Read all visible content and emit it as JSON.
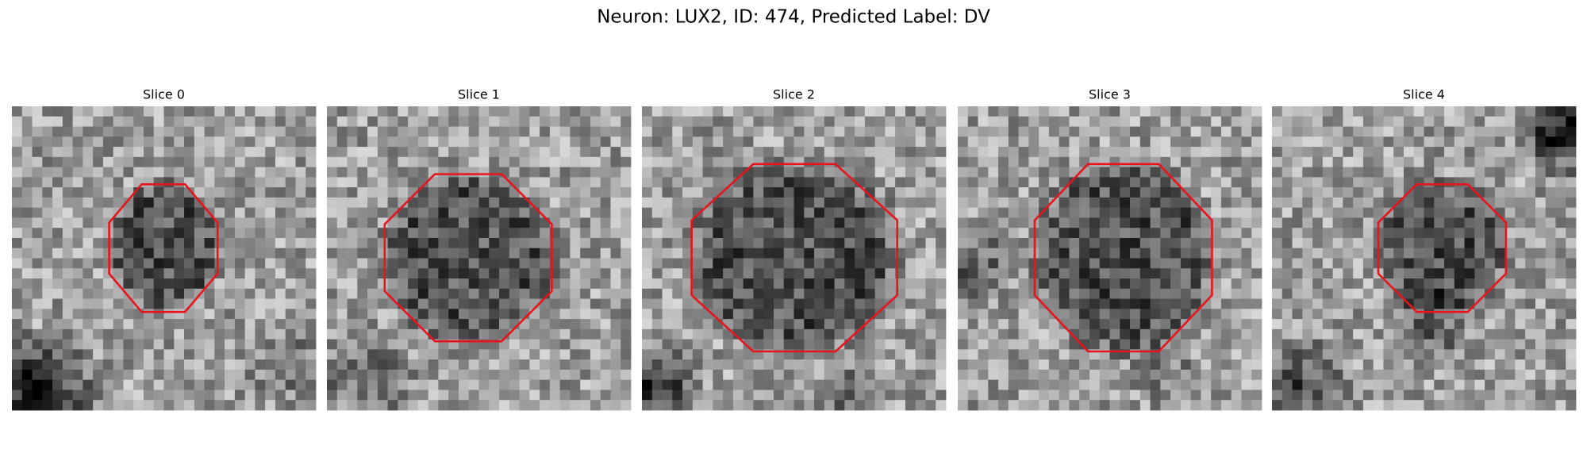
{
  "figure": {
    "title": "Neuron: LUX2, ID: 474, Predicted Label: DV",
    "panels": [
      {
        "title": "Slice 0"
      },
      {
        "title": "Slice 1"
      },
      {
        "title": "Slice 2"
      },
      {
        "title": "Slice 3"
      },
      {
        "title": "Slice 4"
      }
    ]
  }
}
